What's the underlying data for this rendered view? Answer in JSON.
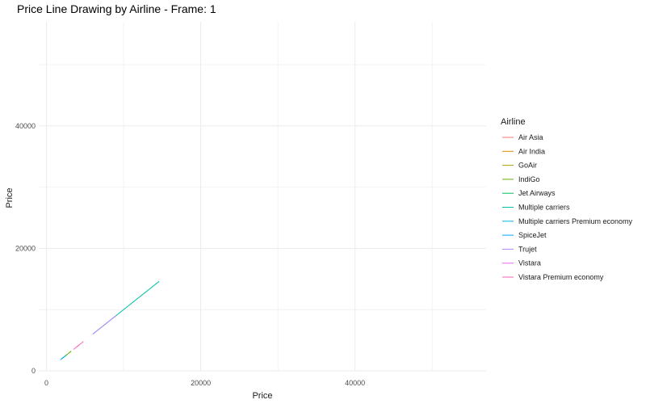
{
  "chart_data": {
    "type": "line",
    "title": "Price Line Drawing by Airline - Frame: 1",
    "xlabel": "Price",
    "ylabel": "Price",
    "xlim": [
      -1000,
      57000
    ],
    "ylim": [
      0,
      57000
    ],
    "x_ticks": [
      0,
      20000,
      40000
    ],
    "y_ticks": [
      0,
      20000,
      40000
    ],
    "grid": true,
    "legend": {
      "title": "Airline",
      "position": "right"
    },
    "series": [
      {
        "name": "Air Asia",
        "color": "#F8766D",
        "x": [
          3900,
          4200
        ],
        "y": [
          3900,
          4200
        ]
      },
      {
        "name": "Air India",
        "color": "#DB8E00",
        "x": [],
        "y": []
      },
      {
        "name": "GoAir",
        "color": "#AEA200",
        "x": [
          3000,
          3200
        ],
        "y": [
          3000,
          3200
        ]
      },
      {
        "name": "IndiGo",
        "color": "#64B200",
        "x": [
          2500,
          3200
        ],
        "y": [
          2500,
          3200
        ]
      },
      {
        "name": "Jet Airways",
        "color": "#00BD5C",
        "x": [
          2000,
          2600
        ],
        "y": [
          2000,
          2600
        ]
      },
      {
        "name": "Multiple carriers",
        "color": "#00C1A7",
        "x": [
          6000,
          14600
        ],
        "y": [
          6000,
          14600
        ]
      },
      {
        "name": "Multiple carriers Premium economy",
        "color": "#00BADE",
        "x": [],
        "y": []
      },
      {
        "name": "SpiceJet",
        "color": "#00A6FF",
        "x": [
          1800,
          2400
        ],
        "y": [
          1800,
          2400
        ]
      },
      {
        "name": "Trujet",
        "color": "#B385FF",
        "x": [
          6000,
          9000
        ],
        "y": [
          6000,
          9000
        ]
      },
      {
        "name": "Vistara",
        "color": "#EF67EB",
        "x": [],
        "y": []
      },
      {
        "name": "Vistara Premium economy",
        "color": "#FF63B6",
        "x": [
          3500,
          4800
        ],
        "y": [
          3500,
          4800
        ]
      }
    ]
  }
}
